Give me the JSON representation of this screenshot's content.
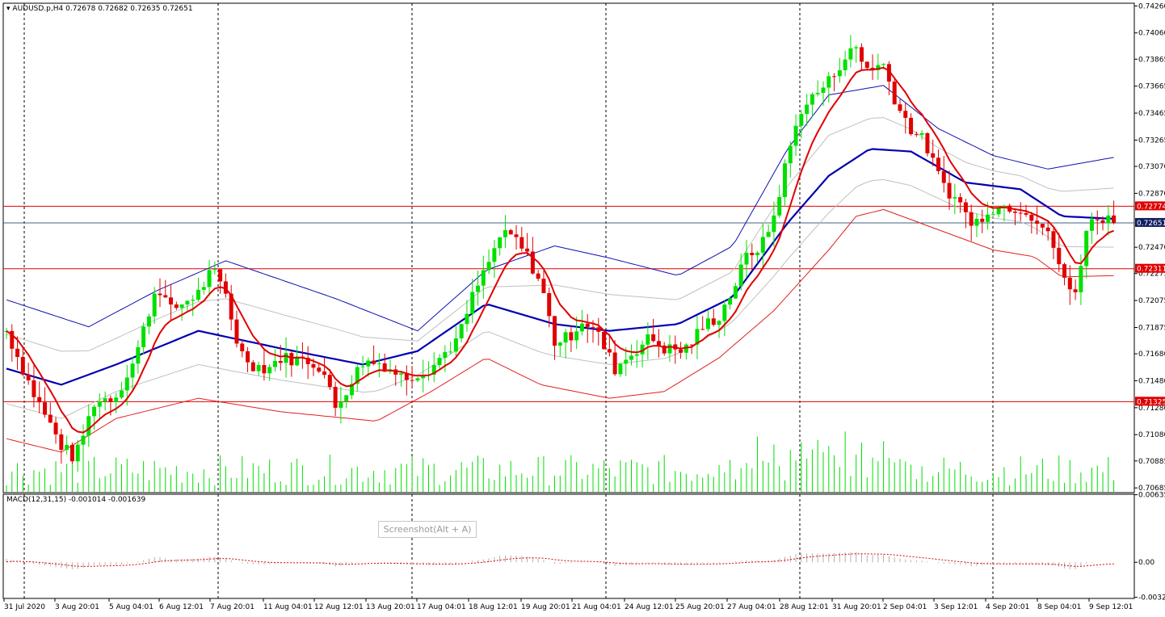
{
  "header": {
    "symbol": "AUDUSD.p,H4",
    "ohlc": "0.72678 0.72682 0.72635 0.72651"
  },
  "macd_header": "MACD(12,31,15) -0.001014 -0.001639",
  "tooltip": "Screenshot(Alt + A)",
  "colors": {
    "bull": "#00e000",
    "bear": "#e00000",
    "bb_upper": "#1010b0",
    "bb_mid": "#0000b0",
    "bb_lower": "#e02020",
    "ma_fast": "#e00000",
    "envelope": "#c0c0c0",
    "grid": "#000000",
    "hline": "#e00000",
    "current_line": "#406080"
  },
  "chart_data": {
    "type": "candlestick",
    "instrument": "AUDUSD.p",
    "timeframe": "H4",
    "price_axis_ticks": [
      "0.74260",
      "0.74060",
      "0.73865",
      "0.73665",
      "0.73465",
      "0.73265",
      "0.73070",
      "0.72870",
      "0.72470",
      "0.72275",
      "0.72075",
      "0.71875",
      "0.71680",
      "0.71480",
      "0.71280",
      "0.71080",
      "0.70885",
      "0.70685"
    ],
    "price_range": [
      0.7065,
      0.7428
    ],
    "time_axis_labels": [
      "31 Jul 2020",
      "3 Aug 20:01",
      "5 Aug 04:01",
      "6 Aug 12:01",
      "7 Aug 20:01",
      "11 Aug 04:01",
      "12 Aug 12:01",
      "13 Aug 20:01",
      "17 Aug 04:01",
      "18 Aug 12:01",
      "19 Aug 20:01",
      "21 Aug 04:01",
      "24 Aug 12:01",
      "25 Aug 20:01",
      "27 Aug 04:01",
      "28 Aug 12:01",
      "31 Aug 20:01",
      "2 Sep 04:01",
      "3 Sep 12:01",
      "4 Sep 20:01",
      "8 Sep 04:01",
      "9 Sep 12:01"
    ],
    "horizontal_levels": [
      {
        "label": "0.72774",
        "value": 0.72774,
        "type": "resistance"
      },
      {
        "label": "0.72651",
        "value": 0.72651,
        "type": "current"
      },
      {
        "label": "0.72311",
        "value": 0.72311,
        "type": "support"
      },
      {
        "label": "0.71325",
        "value": 0.71325,
        "type": "support"
      }
    ],
    "close_path": [
      [
        0,
        0.7185
      ],
      [
        10,
        0.7138
      ],
      [
        20,
        0.71
      ],
      [
        25,
        0.709
      ],
      [
        32,
        0.7132
      ],
      [
        40,
        0.7137
      ],
      [
        47,
        0.7165
      ],
      [
        55,
        0.722
      ],
      [
        60,
        0.72
      ],
      [
        70,
        0.7213
      ],
      [
        75,
        0.723
      ],
      [
        80,
        0.7212
      ],
      [
        85,
        0.717
      ],
      [
        90,
        0.716
      ],
      [
        95,
        0.7157
      ],
      [
        100,
        0.7165
      ],
      [
        110,
        0.7163
      ],
      [
        115,
        0.7158
      ],
      [
        120,
        0.7128
      ],
      [
        125,
        0.7145
      ],
      [
        130,
        0.7162
      ],
      [
        137,
        0.7161
      ],
      [
        145,
        0.715
      ],
      [
        155,
        0.7158
      ],
      [
        165,
        0.718
      ],
      [
        170,
        0.721
      ],
      [
        177,
        0.724
      ],
      [
        180,
        0.7255
      ],
      [
        185,
        0.7255
      ],
      [
        190,
        0.724
      ],
      [
        195,
        0.722
      ],
      [
        200,
        0.7177
      ],
      [
        205,
        0.718
      ],
      [
        210,
        0.7193
      ],
      [
        215,
        0.7185
      ],
      [
        222,
        0.7157
      ],
      [
        230,
        0.7172
      ],
      [
        235,
        0.718
      ],
      [
        240,
        0.7172
      ],
      [
        247,
        0.717
      ],
      [
        255,
        0.719
      ],
      [
        260,
        0.7196
      ],
      [
        265,
        0.7215
      ],
      [
        270,
        0.724
      ],
      [
        276,
        0.725
      ],
      [
        280,
        0.727
      ],
      [
        285,
        0.7315
      ],
      [
        290,
        0.735
      ],
      [
        295,
        0.736
      ],
      [
        300,
        0.737
      ],
      [
        305,
        0.7386
      ],
      [
        310,
        0.7395
      ],
      [
        313,
        0.738
      ],
      [
        320,
        0.7382
      ],
      [
        325,
        0.7352
      ],
      [
        330,
        0.7335
      ],
      [
        335,
        0.7325
      ],
      [
        340,
        0.73
      ],
      [
        345,
        0.7285
      ],
      [
        350,
        0.7275
      ],
      [
        352,
        0.7262
      ],
      [
        358,
        0.7275
      ],
      [
        365,
        0.7278
      ],
      [
        372,
        0.7275
      ],
      [
        378,
        0.7262
      ],
      [
        382,
        0.7248
      ],
      [
        387,
        0.7215
      ],
      [
        390,
        0.7214
      ],
      [
        394,
        0.726
      ],
      [
        398,
        0.727
      ],
      [
        402,
        0.7268
      ],
      [
        405,
        0.7265
      ]
    ],
    "series": [
      {
        "name": "Bollinger upper",
        "values": [
          [
            0,
            0.7208
          ],
          [
            30,
            0.7188
          ],
          [
            55,
            0.7215
          ],
          [
            80,
            0.7237
          ],
          [
            120,
            0.7209
          ],
          [
            150,
            0.7185
          ],
          [
            175,
            0.723
          ],
          [
            200,
            0.7248
          ],
          [
            220,
            0.7239
          ],
          [
            245,
            0.7226
          ],
          [
            265,
            0.7248
          ],
          [
            285,
            0.732
          ],
          [
            300,
            0.736
          ],
          [
            320,
            0.7367
          ],
          [
            340,
            0.7335
          ],
          [
            360,
            0.7315
          ],
          [
            380,
            0.7305
          ],
          [
            405,
            0.7314
          ]
        ]
      },
      {
        "name": "Bollinger middle",
        "values": [
          [
            0,
            0.7157
          ],
          [
            20,
            0.7145
          ],
          [
            40,
            0.716
          ],
          [
            70,
            0.7185
          ],
          [
            100,
            0.7172
          ],
          [
            130,
            0.716
          ],
          [
            150,
            0.717
          ],
          [
            175,
            0.7205
          ],
          [
            200,
            0.719
          ],
          [
            220,
            0.7185
          ],
          [
            245,
            0.719
          ],
          [
            265,
            0.721
          ],
          [
            285,
            0.7265
          ],
          [
            300,
            0.73
          ],
          [
            315,
            0.732
          ],
          [
            330,
            0.7318
          ],
          [
            350,
            0.7295
          ],
          [
            370,
            0.729
          ],
          [
            385,
            0.727
          ],
          [
            405,
            0.7268
          ]
        ]
      },
      {
        "name": "Bollinger lower",
        "values": [
          [
            0,
            0.7105
          ],
          [
            20,
            0.7095
          ],
          [
            40,
            0.712
          ],
          [
            70,
            0.7135
          ],
          [
            100,
            0.7125
          ],
          [
            135,
            0.7118
          ],
          [
            155,
            0.714
          ],
          [
            175,
            0.7165
          ],
          [
            195,
            0.7145
          ],
          [
            220,
            0.7135
          ],
          [
            240,
            0.714
          ],
          [
            260,
            0.7165
          ],
          [
            280,
            0.72
          ],
          [
            300,
            0.7245
          ],
          [
            310,
            0.727
          ],
          [
            320,
            0.7275
          ],
          [
            340,
            0.726
          ],
          [
            360,
            0.7245
          ],
          [
            375,
            0.724
          ],
          [
            385,
            0.7225
          ],
          [
            405,
            0.7226
          ]
        ]
      }
    ],
    "macd": {
      "name": "MACD(12,31,15)",
      "main": -0.001014,
      "signal": -0.001639,
      "axis_ticks": [
        "0.006356",
        "0.00",
        "-0.003298"
      ],
      "range": [
        -0.0034,
        0.0064
      ]
    },
    "grid": "vertical dashed at day separators",
    "legend": "none"
  }
}
